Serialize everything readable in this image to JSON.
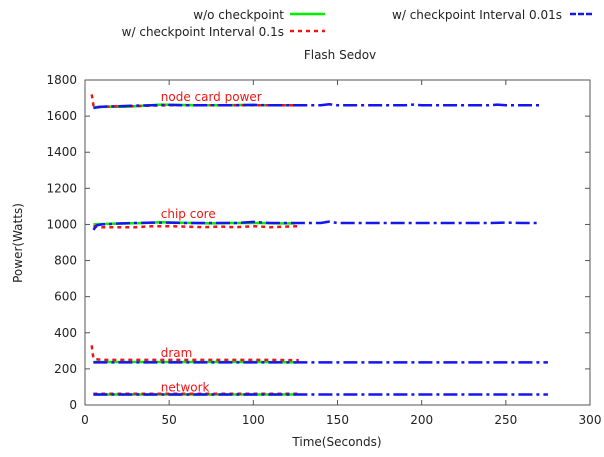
{
  "chart_data": {
    "type": "line",
    "title": "Flash Sedov",
    "xlabel": "Time(Seconds)",
    "ylabel": "Power(Watts)",
    "xlim": [
      0,
      300
    ],
    "ylim": [
      0,
      1800
    ],
    "x_ticks": [
      0,
      50,
      100,
      150,
      200,
      250,
      300
    ],
    "y_ticks": [
      0,
      200,
      400,
      600,
      800,
      1000,
      1200,
      1400,
      1600,
      1800
    ],
    "grid": false,
    "legend_position": "top",
    "legend": [
      {
        "name": "w/o checkpoint",
        "color": "#00ee00",
        "style": "solid"
      },
      {
        "name": "w/ checkpoint Interval 0.01s",
        "color": "#1515ee",
        "style": "long-dash"
      },
      {
        "name": "w/ checkpoint Interval 0.1s",
        "color": "#ee1515",
        "style": "short-dash"
      }
    ],
    "annotations": [
      {
        "text": "node card power",
        "x": 45,
        "y": 1685
      },
      {
        "text": "chip core",
        "x": 45,
        "y": 1035
      },
      {
        "text": "dram",
        "x": 45,
        "y": 265
      },
      {
        "text": "network",
        "x": 45,
        "y": 75
      }
    ],
    "series": [
      {
        "name": "w/o checkpoint",
        "group": "node card power",
        "color": "#00ee00",
        "dash": "solid",
        "x": [
          5,
          15,
          25,
          35,
          45,
          55,
          65,
          75,
          85,
          95,
          105,
          115,
          125
        ],
        "y": [
          1650,
          1652,
          1652,
          1658,
          1664,
          1662,
          1660,
          1660,
          1660,
          1662,
          1660,
          1660,
          1660
        ]
      },
      {
        "name": "w/o checkpoint",
        "group": "chip core",
        "color": "#00ee00",
        "dash": "solid",
        "x": [
          5,
          15,
          25,
          35,
          45,
          55,
          65,
          75,
          85,
          95,
          105,
          115,
          125
        ],
        "y": [
          1000,
          1004,
          1006,
          1008,
          1012,
          1010,
          1008,
          1006,
          1008,
          1008,
          1008,
          1006,
          1006
        ]
      },
      {
        "name": "w/o checkpoint",
        "group": "dram",
        "color": "#00ee00",
        "dash": "solid",
        "x": [
          5,
          25,
          45,
          65,
          85,
          105,
          125
        ],
        "y": [
          238,
          238,
          238,
          238,
          238,
          238,
          236
        ]
      },
      {
        "name": "w/o checkpoint",
        "group": "network",
        "color": "#00ee00",
        "dash": "solid",
        "x": [
          5,
          25,
          45,
          65,
          85,
          105,
          125
        ],
        "y": [
          58,
          58,
          58,
          58,
          58,
          58,
          58
        ]
      },
      {
        "name": "w/ checkpoint Interval 0.1s",
        "group": "node card power",
        "color": "#ee1515",
        "dash": "short",
        "x": [
          4,
          4.5,
          5,
          6,
          10,
          20,
          30,
          40,
          50,
          60,
          70,
          80,
          90,
          100,
          110,
          120,
          127
        ],
        "y": [
          1720,
          1690,
          1660,
          1650,
          1652,
          1655,
          1655,
          1658,
          1660,
          1660,
          1660,
          1660,
          1660,
          1660,
          1660,
          1660,
          1660
        ]
      },
      {
        "name": "w/ checkpoint Interval 0.1s",
        "group": "chip core",
        "color": "#ee1515",
        "dash": "short",
        "x": [
          5,
          10,
          20,
          30,
          40,
          50,
          60,
          70,
          80,
          90,
          100,
          110,
          120,
          127
        ],
        "y": [
          990,
          985,
          985,
          985,
          990,
          990,
          988,
          985,
          988,
          985,
          990,
          985,
          988,
          990
        ]
      },
      {
        "name": "w/ checkpoint Interval 0.1s",
        "group": "dram",
        "color": "#ee1515",
        "dash": "short",
        "x": [
          4,
          4.5,
          5,
          6,
          10,
          30,
          50,
          70,
          90,
          110,
          127
        ],
        "y": [
          330,
          290,
          260,
          255,
          250,
          250,
          250,
          250,
          250,
          250,
          248
        ]
      },
      {
        "name": "w/ checkpoint Interval 0.1s",
        "group": "network",
        "color": "#ee1515",
        "dash": "short",
        "x": [
          5,
          30,
          60,
          90,
          127
        ],
        "y": [
          62,
          62,
          62,
          62,
          62
        ]
      },
      {
        "name": "w/ checkpoint Interval 0.01s",
        "group": "node card power",
        "color": "#1515ee",
        "dash": "long",
        "x": [
          5,
          10,
          20,
          30,
          40,
          50,
          60,
          70,
          80,
          90,
          100,
          110,
          120,
          130,
          140,
          145,
          150,
          160,
          170,
          180,
          190,
          195,
          200,
          210,
          220,
          230,
          240,
          245,
          250,
          260,
          270
        ],
        "y": [
          1645,
          1652,
          1655,
          1658,
          1660,
          1662,
          1660,
          1660,
          1660,
          1660,
          1662,
          1660,
          1660,
          1660,
          1660,
          1666,
          1660,
          1660,
          1660,
          1660,
          1660,
          1664,
          1660,
          1660,
          1660,
          1660,
          1660,
          1664,
          1660,
          1660,
          1660
        ]
      },
      {
        "name": "w/ checkpoint Interval 0.01s",
        "group": "chip core",
        "color": "#1515ee",
        "dash": "long",
        "x": [
          5,
          7,
          10,
          20,
          30,
          40,
          50,
          60,
          70,
          80,
          90,
          100,
          110,
          120,
          130,
          140,
          145,
          150,
          160,
          170,
          180,
          190,
          200,
          210,
          220,
          230,
          240,
          250,
          260,
          270
        ],
        "y": [
          970,
          995,
          1000,
          1005,
          1008,
          1010,
          1010,
          1008,
          1008,
          1008,
          1008,
          1014,
          1008,
          1008,
          1008,
          1008,
          1016,
          1008,
          1008,
          1008,
          1008,
          1008,
          1008,
          1008,
          1008,
          1008,
          1008,
          1010,
          1008,
          1008
        ]
      },
      {
        "name": "w/ checkpoint Interval 0.01s",
        "group": "dram",
        "color": "#1515ee",
        "dash": "long",
        "x": [
          5,
          20,
          40,
          60,
          80,
          100,
          120,
          140,
          160,
          180,
          200,
          220,
          240,
          260,
          275
        ],
        "y": [
          236,
          236,
          236,
          236,
          236,
          236,
          236,
          236,
          236,
          236,
          236,
          236,
          236,
          236,
          236
        ]
      },
      {
        "name": "w/ checkpoint Interval 0.01s",
        "group": "network",
        "color": "#1515ee",
        "dash": "long",
        "x": [
          5,
          30,
          60,
          90,
          120,
          150,
          180,
          210,
          240,
          275
        ],
        "y": [
          58,
          58,
          58,
          58,
          58,
          58,
          58,
          58,
          58,
          58
        ]
      }
    ]
  }
}
